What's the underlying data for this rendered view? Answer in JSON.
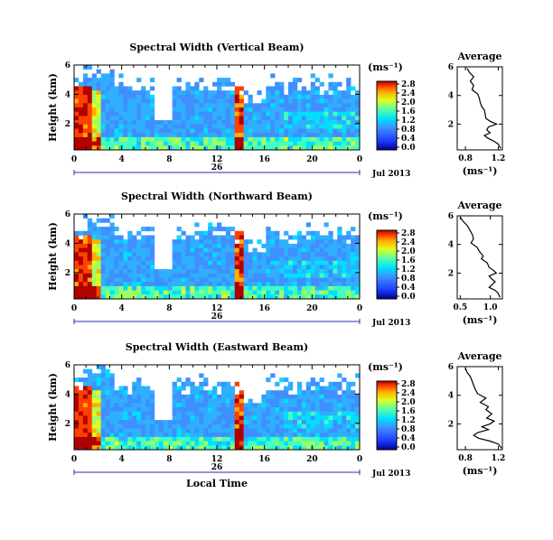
{
  "chart_data": [
    {
      "type": "heatmap",
      "title": "Spectral Width (Vertical Beam)",
      "ylabel": "Height (km)",
      "xlabel": "",
      "x_ticks": [
        "0",
        "4",
        "8",
        "12",
        "16",
        "20",
        "0"
      ],
      "y_ticks": [
        "6",
        "4",
        "2"
      ],
      "xlim": [
        0,
        24
      ],
      "ylim": [
        0.2,
        6.0
      ],
      "date_label": "26",
      "month_label": "Jul 2013",
      "colorbar": {
        "unit": "(ms⁻¹)",
        "ticks": [
          "2.8",
          "2.4",
          "2.0",
          "1.6",
          "1.2",
          "0.8",
          "0.4",
          "0.0"
        ]
      },
      "profile": {
        "title": "Average",
        "xlabel": "(ms⁻¹)",
        "x_ticks": [
          "0.8",
          "1.2"
        ],
        "y_ticks": [
          "6",
          "4",
          "2"
        ],
        "xlim": [
          0.7,
          1.25
        ],
        "ylim": [
          0.2,
          6.0
        ],
        "points": [
          [
            0.82,
            5.9
          ],
          [
            0.85,
            5.6
          ],
          [
            0.9,
            5.3
          ],
          [
            0.86,
            5.0
          ],
          [
            0.9,
            4.7
          ],
          [
            0.88,
            4.4
          ],
          [
            0.95,
            4.1
          ],
          [
            0.97,
            3.8
          ],
          [
            0.98,
            3.5
          ],
          [
            1.0,
            3.2
          ],
          [
            1.03,
            3.0
          ],
          [
            1.04,
            2.7
          ],
          [
            1.05,
            2.4
          ],
          [
            1.1,
            2.2
          ],
          [
            1.18,
            2.0
          ],
          [
            1.08,
            1.8
          ],
          [
            1.06,
            1.6
          ],
          [
            1.1,
            1.4
          ],
          [
            1.03,
            1.2
          ],
          [
            1.08,
            1.0
          ],
          [
            1.15,
            0.8
          ],
          [
            1.2,
            0.6
          ],
          [
            1.23,
            0.3
          ]
        ]
      }
    },
    {
      "type": "heatmap",
      "title": "Spectral Width (Northward Beam)",
      "ylabel": "Height (km)",
      "xlabel": "",
      "x_ticks": [
        "0",
        "4",
        "8",
        "12",
        "16",
        "20",
        "0"
      ],
      "y_ticks": [
        "6",
        "4",
        "2"
      ],
      "xlim": [
        0,
        24
      ],
      "ylim": [
        0.2,
        6.0
      ],
      "date_label": "26",
      "month_label": "Jul 2013",
      "colorbar": {
        "unit": "(ms⁻¹)",
        "ticks": [
          "2.8",
          "2.4",
          "2.0",
          "1.6",
          "1.2",
          "0.8",
          "0.4",
          "0.0"
        ]
      },
      "profile": {
        "title": "Average",
        "xlabel": "(ms⁻¹)",
        "x_ticks": [
          "0.5",
          "1.0"
        ],
        "y_ticks": [
          "6",
          "4",
          "2"
        ],
        "xlim": [
          0.45,
          1.2
        ],
        "ylim": [
          0.2,
          6.0
        ],
        "points": [
          [
            0.5,
            5.9
          ],
          [
            0.55,
            5.6
          ],
          [
            0.62,
            5.3
          ],
          [
            0.66,
            5.0
          ],
          [
            0.7,
            4.7
          ],
          [
            0.72,
            4.4
          ],
          [
            0.68,
            4.1
          ],
          [
            0.78,
            3.8
          ],
          [
            0.82,
            3.5
          ],
          [
            0.88,
            3.2
          ],
          [
            0.85,
            3.0
          ],
          [
            0.95,
            2.7
          ],
          [
            0.98,
            2.4
          ],
          [
            1.05,
            2.2
          ],
          [
            1.1,
            2.0
          ],
          [
            0.98,
            1.8
          ],
          [
            1.02,
            1.6
          ],
          [
            1.08,
            1.4
          ],
          [
            1.03,
            1.2
          ],
          [
            0.98,
            1.0
          ],
          [
            1.08,
            0.8
          ],
          [
            1.13,
            0.6
          ],
          [
            1.16,
            0.3
          ]
        ]
      }
    },
    {
      "type": "heatmap",
      "title": "Spectral Width (Eastward Beam)",
      "ylabel": "Height (km)",
      "xlabel": "Local Time",
      "x_ticks": [
        "0",
        "4",
        "8",
        "12",
        "16",
        "20",
        "0"
      ],
      "y_ticks": [
        "6",
        "4",
        "2"
      ],
      "xlim": [
        0,
        24
      ],
      "ylim": [
        0.2,
        6.0
      ],
      "date_label": "26",
      "month_label": "Jul 2013",
      "colorbar": {
        "unit": "(ms⁻¹)",
        "ticks": [
          "2.8",
          "2.4",
          "2.0",
          "1.6",
          "1.2",
          "0.8",
          "0.4",
          "0.0"
        ]
      },
      "profile": {
        "title": "Average",
        "xlabel": "(ms⁻¹)",
        "x_ticks": [
          "0.8",
          "1.2"
        ],
        "y_ticks": [
          "6",
          "4",
          "2"
        ],
        "xlim": [
          0.7,
          1.25
        ],
        "ylim": [
          0.2,
          6.0
        ],
        "points": [
          [
            0.8,
            5.9
          ],
          [
            0.82,
            5.6
          ],
          [
            0.86,
            5.3
          ],
          [
            0.88,
            5.0
          ],
          [
            0.9,
            4.7
          ],
          [
            0.92,
            4.4
          ],
          [
            0.95,
            4.1
          ],
          [
            1.05,
            3.8
          ],
          [
            0.98,
            3.5
          ],
          [
            1.08,
            3.2
          ],
          [
            1.05,
            3.0
          ],
          [
            1.12,
            2.7
          ],
          [
            1.06,
            2.4
          ],
          [
            1.15,
            2.2
          ],
          [
            1.1,
            2.0
          ],
          [
            1.0,
            1.8
          ],
          [
            1.08,
            1.6
          ],
          [
            0.95,
            1.4
          ],
          [
            0.9,
            1.2
          ],
          [
            0.96,
            1.0
          ],
          [
            1.1,
            0.8
          ],
          [
            1.2,
            0.6
          ],
          [
            1.24,
            0.3
          ]
        ]
      }
    }
  ]
}
